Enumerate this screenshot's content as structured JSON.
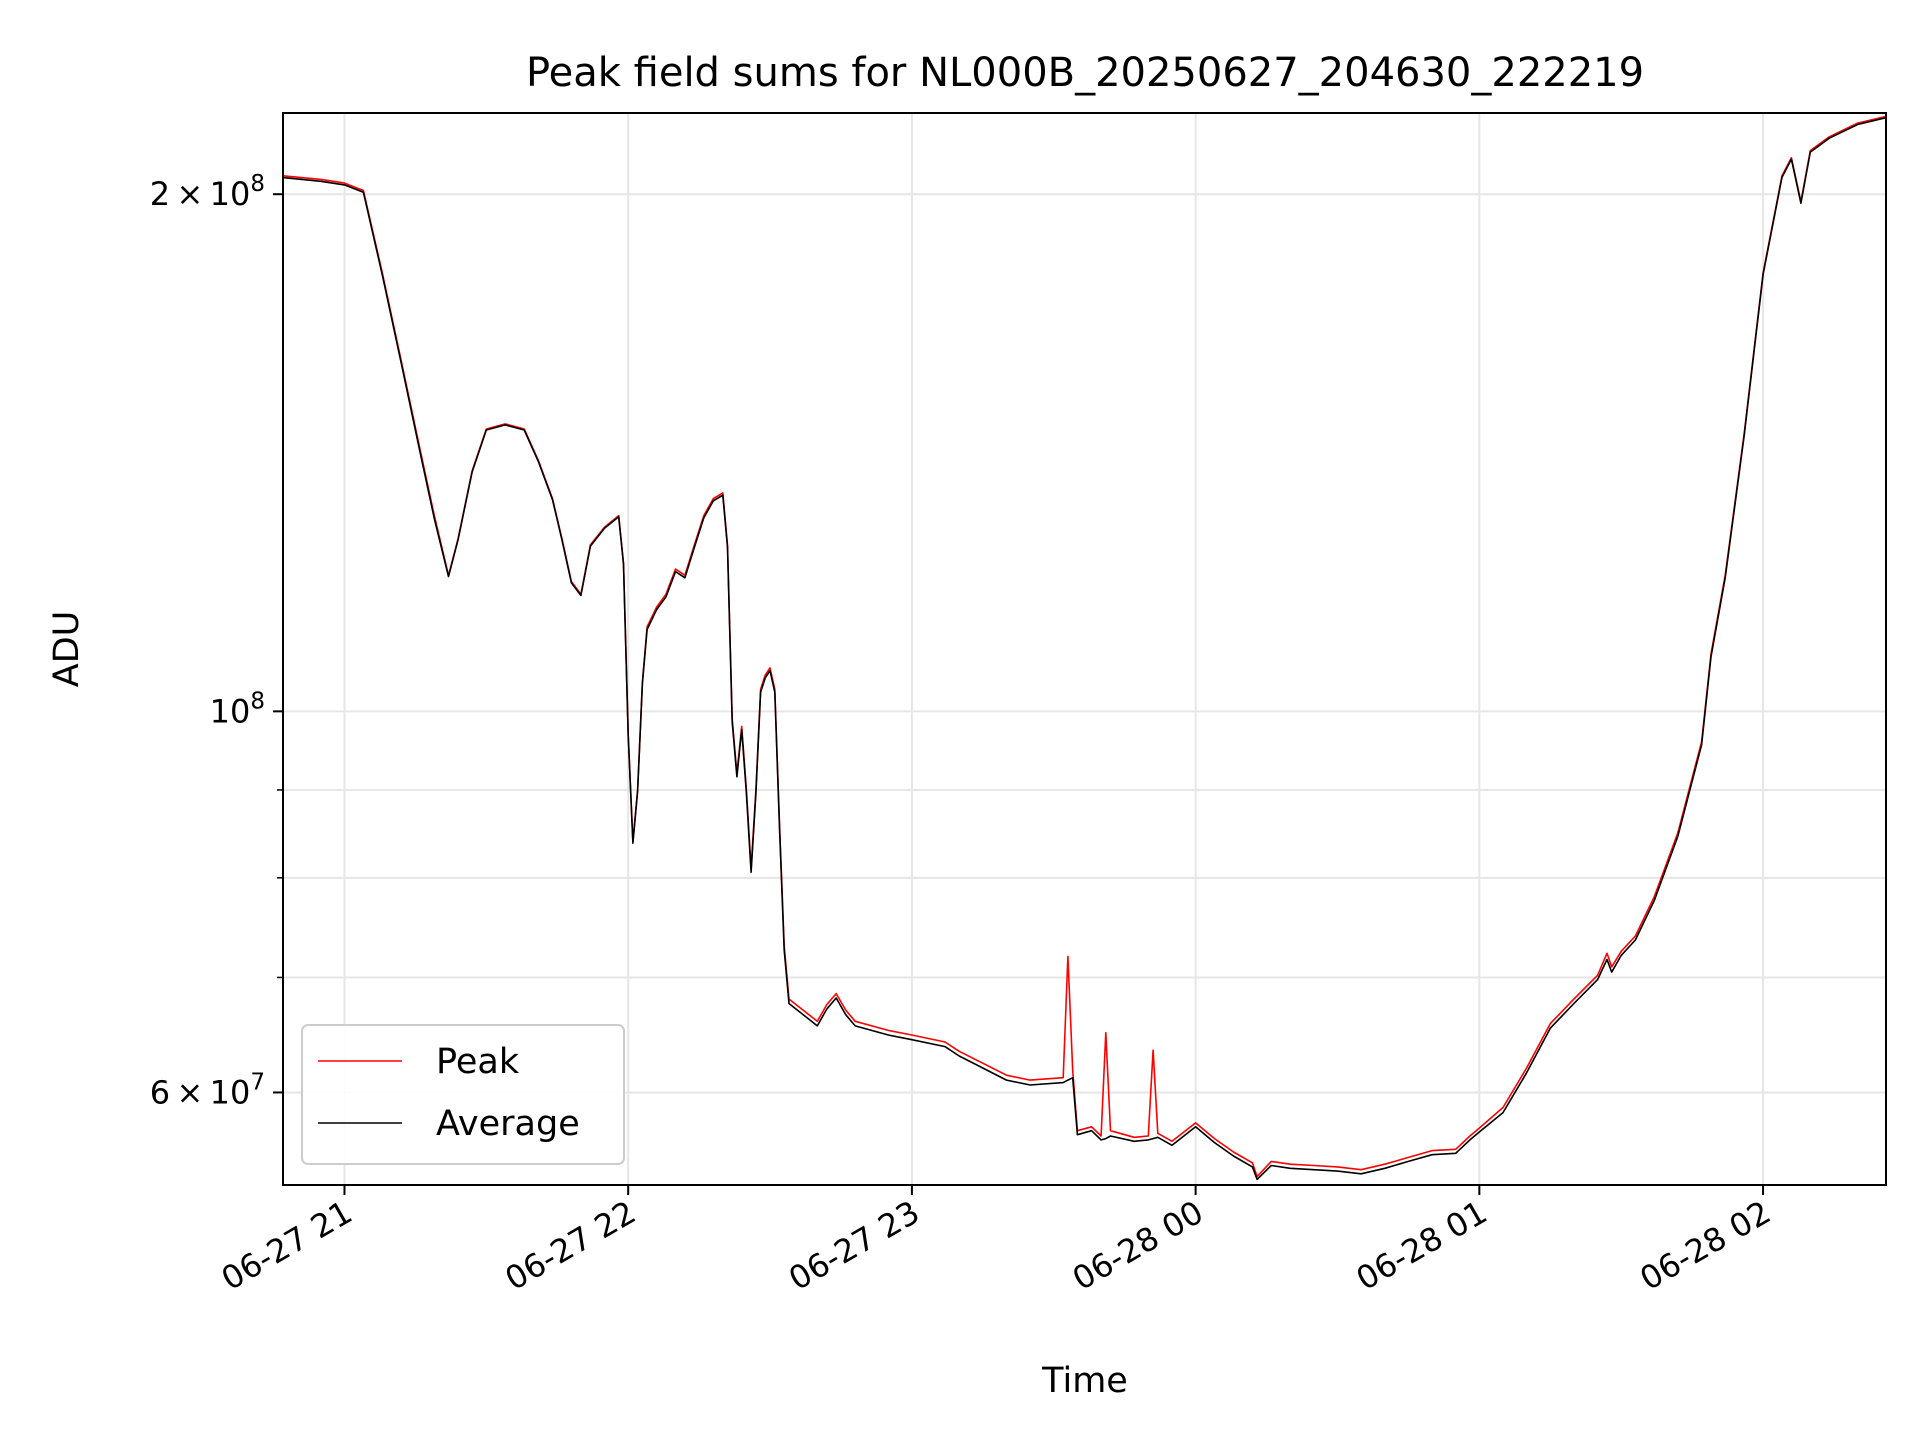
{
  "chart_data": {
    "type": "line",
    "title": "Peak field sums for NL000B_20250627_204630_222219",
    "xlabel": "Time",
    "ylabel": "ADU",
    "yscale": "log",
    "xlim": [
      "2025-06-27 20:47",
      "2025-06-28 02:26"
    ],
    "ylim": [
      53000000,
      223000000
    ],
    "x_ticks": [
      "06-27 21",
      "06-27 22",
      "06-27 23",
      "06-28 00",
      "06-28 01",
      "06-28 02"
    ],
    "x_tick_times": [
      "2025-06-27 21:00",
      "2025-06-27 22:00",
      "2025-06-27 23:00",
      "2025-06-28 00:00",
      "2025-06-28 01:00",
      "2025-06-28 02:00"
    ],
    "y_major_ticks": [
      {
        "value": 200000000,
        "mant": "2",
        "exp": "8"
      },
      {
        "value": 100000000,
        "mant": "",
        "exp": "8"
      },
      {
        "value": 60000000,
        "mant": "6",
        "exp": "7"
      }
    ],
    "y_minor_gridlines": [
      70000000,
      80000000,
      90000000
    ],
    "grid": true,
    "legend_position": "lower-left",
    "series": [
      {
        "name": "Peak",
        "color": "#ff0000",
        "points": [
          [
            "2025-06-27 20:47",
            205000000
          ],
          [
            "2025-06-27 20:55",
            204000000
          ],
          [
            "2025-06-27 21:00",
            203000000
          ],
          [
            "2025-06-27 21:04",
            201000000
          ],
          [
            "2025-06-27 21:08",
            180000000
          ],
          [
            "2025-06-27 21:12",
            160000000
          ],
          [
            "2025-06-27 21:16",
            142000000
          ],
          [
            "2025-06-27 21:19",
            130000000
          ],
          [
            "2025-06-27 21:22",
            120000000
          ],
          [
            "2025-06-27 21:24",
            126000000
          ],
          [
            "2025-06-27 21:27",
            138000000
          ],
          [
            "2025-06-27 21:30",
            146000000
          ],
          [
            "2025-06-27 21:34",
            147000000
          ],
          [
            "2025-06-27 21:38",
            146000000
          ],
          [
            "2025-06-27 21:41",
            140000000
          ],
          [
            "2025-06-27 21:44",
            133000000
          ],
          [
            "2025-06-27 21:46",
            126000000
          ],
          [
            "2025-06-27 21:48",
            119000000
          ],
          [
            "2025-06-27 21:50",
            117000000
          ],
          [
            "2025-06-27 21:52",
            125000000
          ],
          [
            "2025-06-27 21:55",
            128000000
          ],
          [
            "2025-06-27 21:58",
            130000000
          ],
          [
            "2025-06-27 21:59",
            122000000
          ],
          [
            "2025-06-27 22:00",
            97000000
          ],
          [
            "2025-06-27 22:01",
            84000000
          ],
          [
            "2025-06-27 22:02",
            90000000
          ],
          [
            "2025-06-27 22:03",
            104000000
          ],
          [
            "2025-06-27 22:04",
            112000000
          ],
          [
            "2025-06-27 22:06",
            115000000
          ],
          [
            "2025-06-27 22:08",
            117000000
          ],
          [
            "2025-06-27 22:10",
            121000000
          ],
          [
            "2025-06-27 22:12",
            120000000
          ],
          [
            "2025-06-27 22:14",
            125000000
          ],
          [
            "2025-06-27 22:16",
            130000000
          ],
          [
            "2025-06-27 22:18",
            133000000
          ],
          [
            "2025-06-27 22:20",
            134000000
          ],
          [
            "2025-06-27 22:21",
            125000000
          ],
          [
            "2025-06-27 22:22",
            99000000
          ],
          [
            "2025-06-27 22:23",
            92000000
          ],
          [
            "2025-06-27 22:24",
            98000000
          ],
          [
            "2025-06-27 22:25",
            90000000
          ],
          [
            "2025-06-27 22:26",
            81000000
          ],
          [
            "2025-06-27 22:27",
            90000000
          ],
          [
            "2025-06-27 22:28",
            103000000
          ],
          [
            "2025-06-27 22:29",
            105000000
          ],
          [
            "2025-06-27 22:30",
            106000000
          ],
          [
            "2025-06-27 22:31",
            103000000
          ],
          [
            "2025-06-27 22:32",
            86000000
          ],
          [
            "2025-06-27 22:33",
            73000000
          ],
          [
            "2025-06-27 22:34",
            68000000
          ],
          [
            "2025-06-27 22:37",
            67000000
          ],
          [
            "2025-06-27 22:40",
            66000000
          ],
          [
            "2025-06-27 22:42",
            67500000
          ],
          [
            "2025-06-27 22:44",
            68500000
          ],
          [
            "2025-06-27 22:46",
            67000000
          ],
          [
            "2025-06-27 22:48",
            66000000
          ],
          [
            "2025-06-27 22:55",
            65200000
          ],
          [
            "2025-06-27 23:00",
            64800000
          ],
          [
            "2025-06-27 23:07",
            64200000
          ],
          [
            "2025-06-27 23:10",
            63400000
          ],
          [
            "2025-06-27 23:15",
            62400000
          ],
          [
            "2025-06-27 23:20",
            61400000
          ],
          [
            "2025-06-27 23:25",
            61000000
          ],
          [
            "2025-06-27 23:32",
            61200000
          ],
          [
            "2025-06-27 23:33",
            72000000
          ],
          [
            "2025-06-27 23:34",
            61800000
          ],
          [
            "2025-06-27 23:35",
            57000000
          ],
          [
            "2025-06-27 23:38",
            57300000
          ],
          [
            "2025-06-27 23:40",
            56600000
          ],
          [
            "2025-06-27 23:41",
            65000000
          ],
          [
            "2025-06-27 23:42",
            57000000
          ],
          [
            "2025-06-27 23:47",
            56500000
          ],
          [
            "2025-06-27 23:50",
            56600000
          ],
          [
            "2025-06-27 23:51",
            63500000
          ],
          [
            "2025-06-27 23:52",
            56800000
          ],
          [
            "2025-06-27 23:55",
            56200000
          ],
          [
            "2025-06-28 00:00",
            57600000
          ],
          [
            "2025-06-28 00:04",
            56400000
          ],
          [
            "2025-06-28 00:08",
            55400000
          ],
          [
            "2025-06-28 00:12",
            54600000
          ],
          [
            "2025-06-28 00:13",
            53600000
          ],
          [
            "2025-06-28 00:16",
            54700000
          ],
          [
            "2025-06-28 00:20",
            54500000
          ],
          [
            "2025-06-28 00:25",
            54400000
          ],
          [
            "2025-06-28 00:30",
            54300000
          ],
          [
            "2025-06-28 00:35",
            54100000
          ],
          [
            "2025-06-28 00:40",
            54500000
          ],
          [
            "2025-06-28 00:45",
            55000000
          ],
          [
            "2025-06-28 00:50",
            55500000
          ],
          [
            "2025-06-28 00:55",
            55600000
          ],
          [
            "2025-06-28 00:58",
            56600000
          ],
          [
            "2025-06-28 01:00",
            57200000
          ],
          [
            "2025-06-28 01:05",
            58800000
          ],
          [
            "2025-06-28 01:10",
            62000000
          ],
          [
            "2025-06-28 01:15",
            65800000
          ],
          [
            "2025-06-28 01:20",
            68000000
          ],
          [
            "2025-06-28 01:25",
            70200000
          ],
          [
            "2025-06-28 01:27",
            72300000
          ],
          [
            "2025-06-28 01:28",
            71000000
          ],
          [
            "2025-06-28 01:30",
            72500000
          ],
          [
            "2025-06-28 01:33",
            74000000
          ],
          [
            "2025-06-28 01:37",
            78000000
          ],
          [
            "2025-06-28 01:42",
            85000000
          ],
          [
            "2025-06-28 01:47",
            96000000
          ],
          [
            "2025-06-28 01:49",
            108000000
          ],
          [
            "2025-06-28 01:52",
            120000000
          ],
          [
            "2025-06-28 01:56",
            145000000
          ],
          [
            "2025-06-28 02:00",
            180000000
          ],
          [
            "2025-06-28 02:04",
            205000000
          ],
          [
            "2025-06-28 02:06",
            210000000
          ],
          [
            "2025-06-28 02:08",
            198000000
          ],
          [
            "2025-06-28 02:10",
            212000000
          ],
          [
            "2025-06-28 02:14",
            216000000
          ],
          [
            "2025-06-28 02:20",
            220000000
          ],
          [
            "2025-06-28 02:26",
            222000000
          ]
        ]
      },
      {
        "name": "Average",
        "color": "#000000",
        "points": [
          [
            "2025-06-27 20:47",
            204500000
          ],
          [
            "2025-06-27 20:55",
            203500000
          ],
          [
            "2025-06-27 21:00",
            202500000
          ],
          [
            "2025-06-27 21:04",
            200500000
          ],
          [
            "2025-06-27 21:08",
            179500000
          ],
          [
            "2025-06-27 21:12",
            159500000
          ],
          [
            "2025-06-27 21:16",
            141500000
          ],
          [
            "2025-06-27 21:19",
            129500000
          ],
          [
            "2025-06-27 21:22",
            119800000
          ],
          [
            "2025-06-27 21:24",
            125800000
          ],
          [
            "2025-06-27 21:27",
            137800000
          ],
          [
            "2025-06-27 21:30",
            145800000
          ],
          [
            "2025-06-27 21:34",
            146800000
          ],
          [
            "2025-06-27 21:38",
            145800000
          ],
          [
            "2025-06-27 21:41",
            139800000
          ],
          [
            "2025-06-27 21:44",
            132800000
          ],
          [
            "2025-06-27 21:46",
            125800000
          ],
          [
            "2025-06-27 21:48",
            118800000
          ],
          [
            "2025-06-27 21:50",
            116800000
          ],
          [
            "2025-06-27 21:52",
            124800000
          ],
          [
            "2025-06-27 21:55",
            127800000
          ],
          [
            "2025-06-27 21:58",
            129800000
          ],
          [
            "2025-06-27 21:59",
            121800000
          ],
          [
            "2025-06-27 22:00",
            96800000
          ],
          [
            "2025-06-27 22:01",
            83800000
          ],
          [
            "2025-06-27 22:02",
            89800000
          ],
          [
            "2025-06-27 22:03",
            103800000
          ],
          [
            "2025-06-27 22:04",
            111600000
          ],
          [
            "2025-06-27 22:06",
            114600000
          ],
          [
            "2025-06-27 22:08",
            116600000
          ],
          [
            "2025-06-27 22:10",
            120600000
          ],
          [
            "2025-06-27 22:12",
            119600000
          ],
          [
            "2025-06-27 22:14",
            124600000
          ],
          [
            "2025-06-27 22:16",
            129600000
          ],
          [
            "2025-06-27 22:18",
            132600000
          ],
          [
            "2025-06-27 22:20",
            133600000
          ],
          [
            "2025-06-27 22:21",
            124600000
          ],
          [
            "2025-06-27 22:22",
            98600000
          ],
          [
            "2025-06-27 22:23",
            91600000
          ],
          [
            "2025-06-27 22:24",
            97600000
          ],
          [
            "2025-06-27 22:25",
            89600000
          ],
          [
            "2025-06-27 22:26",
            80600000
          ],
          [
            "2025-06-27 22:27",
            89600000
          ],
          [
            "2025-06-27 22:28",
            102600000
          ],
          [
            "2025-06-27 22:29",
            104600000
          ],
          [
            "2025-06-27 22:30",
            105600000
          ],
          [
            "2025-06-27 22:31",
            102600000
          ],
          [
            "2025-06-27 22:32",
            85600000
          ],
          [
            "2025-06-27 22:33",
            72600000
          ],
          [
            "2025-06-27 22:34",
            67600000
          ],
          [
            "2025-06-27 22:37",
            66600000
          ],
          [
            "2025-06-27 22:40",
            65600000
          ],
          [
            "2025-06-27 22:42",
            67100000
          ],
          [
            "2025-06-27 22:44",
            68100000
          ],
          [
            "2025-06-27 22:46",
            66600000
          ],
          [
            "2025-06-27 22:48",
            65600000
          ],
          [
            "2025-06-27 22:55",
            64800000
          ],
          [
            "2025-06-27 23:00",
            64400000
          ],
          [
            "2025-06-27 23:07",
            63800000
          ],
          [
            "2025-06-27 23:10",
            63000000
          ],
          [
            "2025-06-27 23:15",
            62000000
          ],
          [
            "2025-06-27 23:20",
            61000000
          ],
          [
            "2025-06-27 23:25",
            60600000
          ],
          [
            "2025-06-27 23:32",
            60800000
          ],
          [
            "2025-06-27 23:33",
            61000000
          ],
          [
            "2025-06-27 23:34",
            61200000
          ],
          [
            "2025-06-27 23:35",
            56700000
          ],
          [
            "2025-06-27 23:38",
            57000000
          ],
          [
            "2025-06-27 23:40",
            56300000
          ],
          [
            "2025-06-27 23:41",
            56400000
          ],
          [
            "2025-06-27 23:42",
            56600000
          ],
          [
            "2025-06-27 23:47",
            56200000
          ],
          [
            "2025-06-27 23:50",
            56300000
          ],
          [
            "2025-06-27 23:51",
            56400000
          ],
          [
            "2025-06-27 23:52",
            56500000
          ],
          [
            "2025-06-27 23:55",
            55900000
          ],
          [
            "2025-06-28 00:00",
            57300000
          ],
          [
            "2025-06-28 00:04",
            56100000
          ],
          [
            "2025-06-28 00:08",
            55100000
          ],
          [
            "2025-06-28 00:12",
            54300000
          ],
          [
            "2025-06-28 00:13",
            53400000
          ],
          [
            "2025-06-28 00:16",
            54400000
          ],
          [
            "2025-06-28 00:20",
            54200000
          ],
          [
            "2025-06-28 00:25",
            54100000
          ],
          [
            "2025-06-28 00:30",
            54000000
          ],
          [
            "2025-06-28 00:35",
            53800000
          ],
          [
            "2025-06-28 00:40",
            54200000
          ],
          [
            "2025-06-28 00:45",
            54700000
          ],
          [
            "2025-06-28 00:50",
            55200000
          ],
          [
            "2025-06-28 00:55",
            55300000
          ],
          [
            "2025-06-28 00:58",
            56300000
          ],
          [
            "2025-06-28 01:00",
            56900000
          ],
          [
            "2025-06-28 01:05",
            58400000
          ],
          [
            "2025-06-28 01:10",
            61600000
          ],
          [
            "2025-06-28 01:15",
            65400000
          ],
          [
            "2025-06-28 01:20",
            67600000
          ],
          [
            "2025-06-28 01:25",
            69800000
          ],
          [
            "2025-06-28 01:27",
            71700000
          ],
          [
            "2025-06-28 01:28",
            70500000
          ],
          [
            "2025-06-28 01:30",
            72100000
          ],
          [
            "2025-06-28 01:33",
            73600000
          ],
          [
            "2025-06-28 01:37",
            77600000
          ],
          [
            "2025-06-28 01:42",
            84600000
          ],
          [
            "2025-06-28 01:47",
            95600000
          ],
          [
            "2025-06-28 01:49",
            107600000
          ],
          [
            "2025-06-28 01:52",
            119600000
          ],
          [
            "2025-06-28 01:56",
            144600000
          ],
          [
            "2025-06-28 02:00",
            179600000
          ],
          [
            "2025-06-28 02:04",
            204600000
          ],
          [
            "2025-06-28 02:06",
            209600000
          ],
          [
            "2025-06-28 02:08",
            197600000
          ],
          [
            "2025-06-28 02:10",
            211600000
          ],
          [
            "2025-06-28 02:14",
            215600000
          ],
          [
            "2025-06-28 02:20",
            219600000
          ],
          [
            "2025-06-28 02:26",
            221600000
          ]
        ]
      }
    ]
  }
}
